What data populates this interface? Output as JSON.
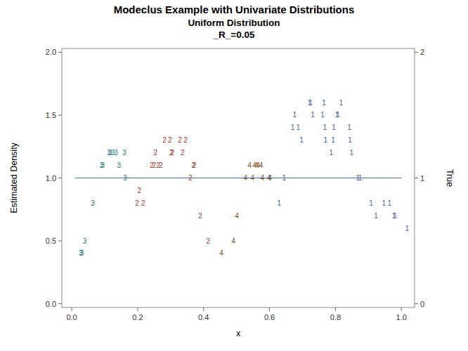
{
  "chart_data": {
    "type": "scatter",
    "title": "Modeclus Example with Univariate Distributions",
    "subtitle": [
      "Uniform Distribution",
      "_R_=0.05"
    ],
    "x_label": "x",
    "y_label": "Estimated Density",
    "y2_label": "True",
    "xlim": [
      -0.03,
      1.04
    ],
    "ylim": [
      -0.03,
      2.03
    ],
    "y2lim": [
      -0.03,
      2.03
    ],
    "xticks": [
      {
        "value": 0,
        "label": "0.0"
      },
      {
        "value": 0.2,
        "label": "0.2"
      },
      {
        "value": 0.4,
        "label": "0.4"
      },
      {
        "value": 0.6,
        "label": "0.6"
      },
      {
        "value": 0.8,
        "label": "0.8"
      },
      {
        "value": 1,
        "label": "1.0"
      }
    ],
    "yticks": [
      {
        "value": 0,
        "label": "0.0"
      },
      {
        "value": 0.5,
        "label": "0.5"
      },
      {
        "value": 1,
        "label": "1.0"
      },
      {
        "value": 1.5,
        "label": "1.5"
      },
      {
        "value": 2,
        "label": "2.0"
      }
    ],
    "y2ticks": [
      0,
      1,
      2
    ],
    "series": [
      {
        "name": "1",
        "color": "#3f5f9c",
        "marker": "text",
        "x": [
          0.644,
          0.629,
          0.676,
          0.67,
          0.687,
          0.697,
          0.721,
          0.725,
          0.731,
          0.765,
          0.761,
          0.768,
          0.795,
          0.77,
          0.793,
          0.787,
          0.804,
          0.808,
          0.817,
          0.842,
          0.844,
          0.849,
          0.868,
          0.875,
          0.908,
          0.923,
          0.947,
          0.964,
          0.977,
          0.981,
          1.017
        ],
        "values": [
          1.0,
          0.8,
          1.5,
          1.4,
          1.4,
          1.3,
          1.6,
          1.6,
          1.5,
          1.6,
          1.5,
          1.4,
          1.4,
          1.3,
          1.3,
          1.2,
          1.5,
          1.5,
          1.6,
          1.4,
          1.3,
          1.2,
          1.0,
          1.0,
          0.8,
          0.7,
          0.8,
          0.8,
          0.7,
          0.7,
          0.6
        ]
      },
      {
        "name": "2",
        "color": "#a33b2b",
        "marker": "text",
        "x": [
          0.205,
          0.198,
          0.217,
          0.254,
          0.243,
          0.25,
          0.262,
          0.27,
          0.281,
          0.298,
          0.328,
          0.345,
          0.302,
          0.306,
          0.336,
          0.369,
          0.372,
          0.36,
          0.39,
          0.414
        ],
        "values": [
          0.9,
          0.8,
          0.8,
          1.2,
          1.1,
          1.1,
          1.1,
          1.1,
          1.3,
          1.3,
          1.3,
          1.3,
          1.2,
          1.2,
          1.2,
          1.1,
          1.1,
          1.0,
          0.7,
          0.5
        ]
      },
      {
        "name": "3",
        "color": "#1e7b7b",
        "marker": "text",
        "x": [
          0.027,
          0.031,
          0.04,
          0.064,
          0.09,
          0.094,
          0.143,
          0.162,
          0.113,
          0.117,
          0.125,
          0.134,
          0.16
        ],
        "values": [
          0.4,
          0.4,
          0.5,
          0.8,
          1.1,
          1.1,
          1.1,
          1.0,
          1.2,
          1.2,
          1.2,
          1.2,
          1.2
        ]
      },
      {
        "name": "4",
        "color": "#7b4a1c",
        "marker": "text",
        "x": [
          0.454,
          0.49,
          0.501,
          0.527,
          0.548,
          0.578,
          0.598,
          0.601,
          0.539,
          0.554,
          0.56,
          0.565,
          0.574
        ],
        "values": [
          0.4,
          0.5,
          0.7,
          1.0,
          1.0,
          1.0,
          1.0,
          1.0,
          1.1,
          1.1,
          1.1,
          1.1,
          1.1
        ]
      },
      {
        "name": "True",
        "color": "#4a6ea8",
        "type": "line",
        "axis": "y2",
        "x": [
          0.01,
          1.0
        ],
        "values": [
          1,
          1
        ]
      }
    ]
  }
}
